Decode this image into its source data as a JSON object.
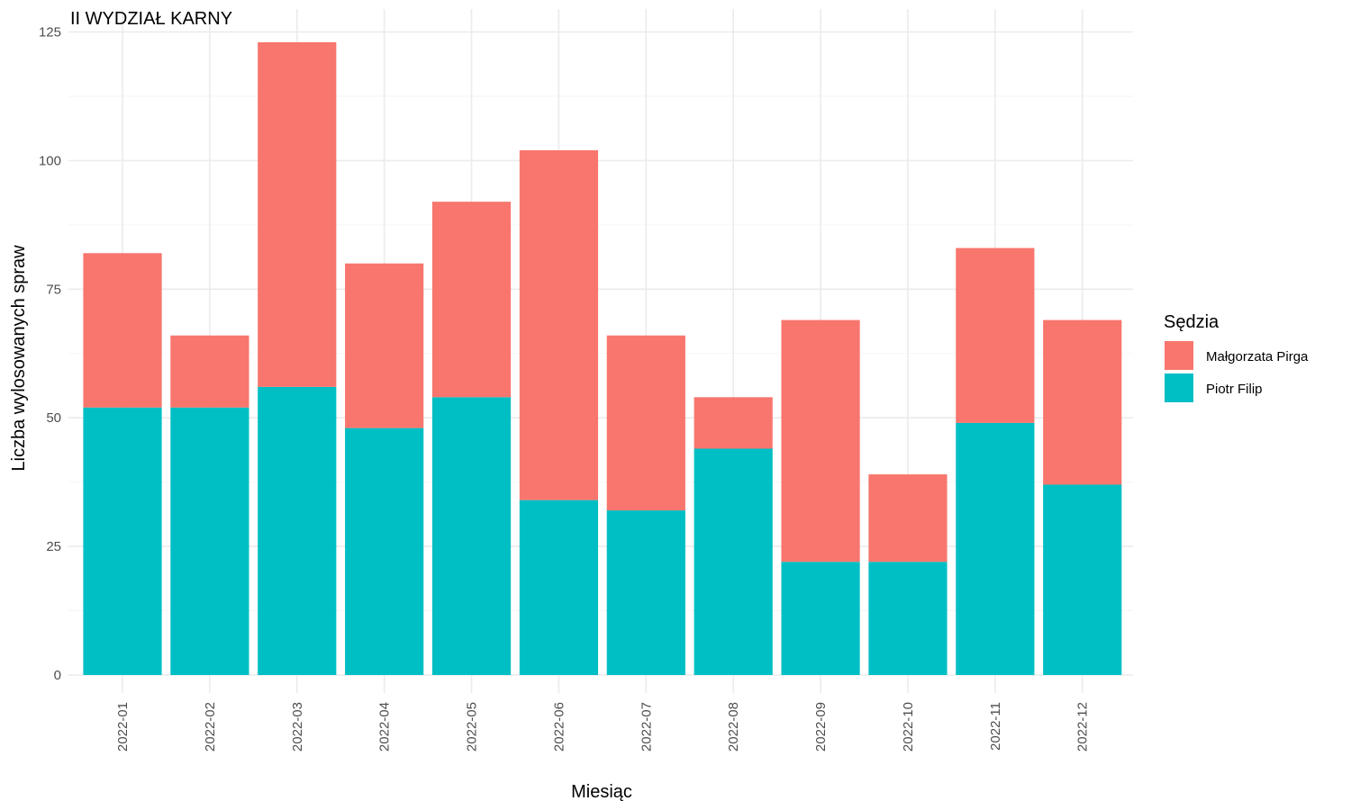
{
  "chart_data": {
    "type": "bar",
    "stacked": true,
    "title": "II WYDZIAŁ KARNY",
    "xlabel": "Miesiąc",
    "ylabel": "Liczba wylosowanych spraw",
    "ylim": [
      0,
      125
    ],
    "yticks": [
      "0",
      "25",
      "50",
      "75",
      "100",
      "125"
    ],
    "categories": [
      "2022-01",
      "2022-02",
      "2022-03",
      "2022-04",
      "2022-05",
      "2022-06",
      "2022-07",
      "2022-08",
      "2022-09",
      "2022-10",
      "2022-11",
      "2022-12"
    ],
    "series": [
      {
        "name": "Piotr Filip",
        "color": "#00BFC4",
        "values": [
          52,
          52,
          56,
          48,
          54,
          34,
          32,
          44,
          22,
          22,
          49,
          37
        ]
      },
      {
        "name": "Małgorzata Pirga",
        "color": "#F8766D",
        "values": [
          30,
          14,
          67,
          32,
          38,
          68,
          34,
          10,
          47,
          17,
          34,
          32
        ]
      }
    ],
    "legend": {
      "title": "Sędzia",
      "position": "right",
      "entries": [
        "Małgorzata Pirga",
        "Piotr Filip"
      ]
    },
    "grid": true
  }
}
